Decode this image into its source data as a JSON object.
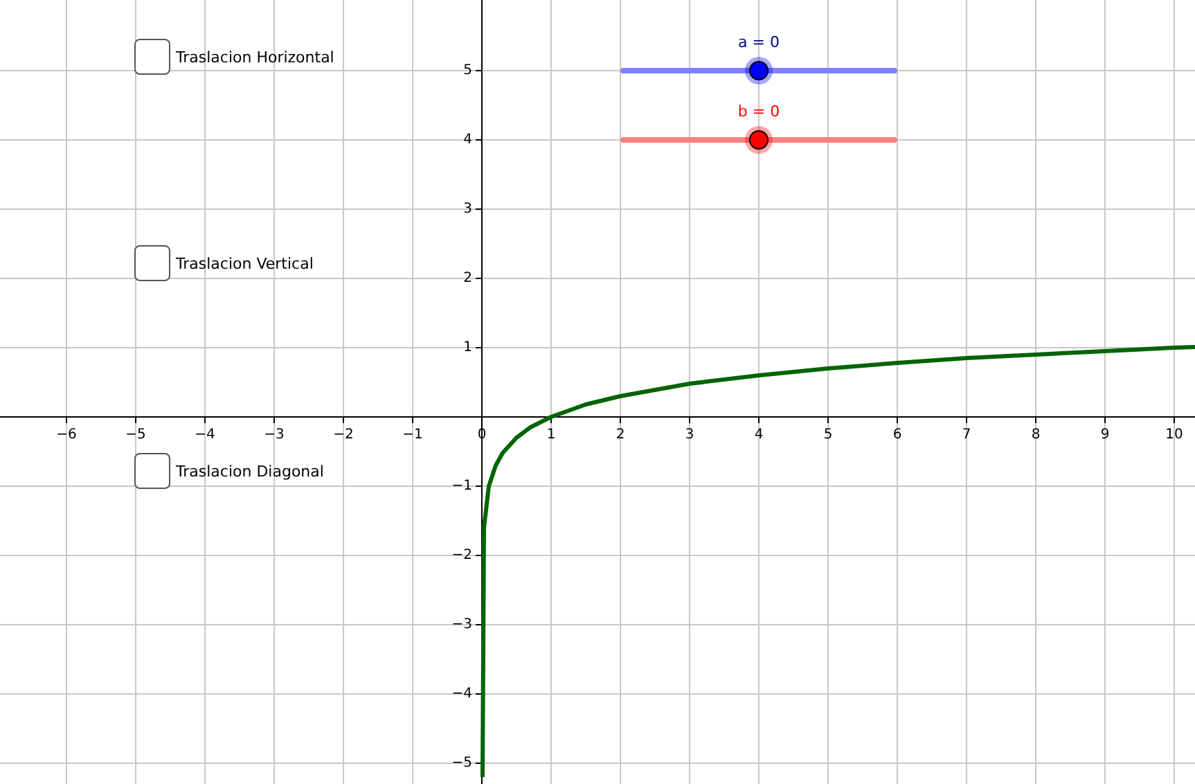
{
  "chart_data": {
    "type": "line",
    "x": [
      0.01,
      0.03,
      0.1,
      0.2,
      0.3,
      0.5,
      0.7,
      1,
      1.5,
      2,
      3,
      4,
      5,
      6,
      7,
      8,
      9,
      10,
      10.3
    ],
    "series": [
      {
        "color": "#006400",
        "values": [
          -5.2,
          -1.6,
          -1,
          -0.7,
          -0.52,
          -0.3,
          -0.15,
          0,
          0.18,
          0.3,
          0.48,
          0.6,
          0.7,
          0.78,
          0.85,
          0.9,
          0.95,
          1,
          1.01
        ]
      }
    ],
    "xlim": [
      -6.96,
      10.3
    ],
    "ylim": [
      -5.3,
      6.02
    ],
    "xticks": [
      {
        "value": -6,
        "label": "−6"
      },
      {
        "value": -5,
        "label": "−5"
      },
      {
        "value": -4,
        "label": "−4"
      },
      {
        "value": -3,
        "label": "−3"
      },
      {
        "value": -2,
        "label": "−2"
      },
      {
        "value": -1,
        "label": "−1"
      },
      {
        "value": 0,
        "label": "0"
      },
      1,
      2,
      3,
      4,
      5,
      6,
      7,
      8,
      9,
      10
    ],
    "yticks": [
      {
        "value": -5,
        "label": "−5"
      },
      {
        "value": -4,
        "label": "−4"
      },
      {
        "value": -3,
        "label": "−3"
      },
      {
        "value": -2,
        "label": "−2"
      },
      {
        "value": -1,
        "label": "−1"
      },
      {
        "value": 0,
        "label": null
      },
      1,
      2,
      3,
      4,
      5
    ],
    "grid": true,
    "marker": "none",
    "line_style": "solid",
    "annotations": [
      "Traslacion Horizontal",
      "Traslacion Vertical",
      "Traslacion Diagonal",
      "a = 0",
      "b = 0"
    ]
  }
}
